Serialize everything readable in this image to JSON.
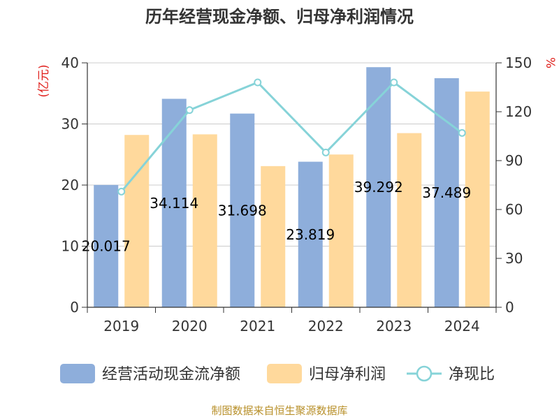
{
  "chart_data": {
    "type": "bar",
    "title": "历年经营现金净额、归母净利润情况",
    "categories": [
      "2019",
      "2020",
      "2021",
      "2022",
      "2023",
      "2024"
    ],
    "series": [
      {
        "name": "经营活动现金流净额",
        "type": "bar",
        "axis": "left",
        "values": [
          20.017,
          34.114,
          31.698,
          23.819,
          39.292,
          37.489
        ],
        "labels": [
          "20.017",
          "34.114",
          "31.698",
          "23.819",
          "39.292",
          "37.489"
        ],
        "color": "#8eaedb"
      },
      {
        "name": "归母净利润",
        "type": "bar",
        "axis": "left",
        "values": [
          28.2,
          28.3,
          23.1,
          25.0,
          28.5,
          35.3
        ],
        "color": "#ffd99c"
      },
      {
        "name": "净现比",
        "type": "line",
        "axis": "right",
        "values": [
          71,
          121,
          138,
          95,
          138,
          107
        ],
        "color": "#86d3d8"
      }
    ],
    "y_left": {
      "unit": "(亿元)",
      "range": [
        0,
        40
      ],
      "ticks": [
        "0",
        "10",
        "20",
        "30",
        "40"
      ]
    },
    "y_right": {
      "unit": "%",
      "range": [
        0,
        150
      ],
      "ticks": [
        "0",
        "30",
        "60",
        "90",
        "120",
        "150"
      ]
    },
    "grid": true,
    "legend": "bottom",
    "unit_color": "#e0201c"
  },
  "source": "制图数据来自恒生聚源数据库"
}
